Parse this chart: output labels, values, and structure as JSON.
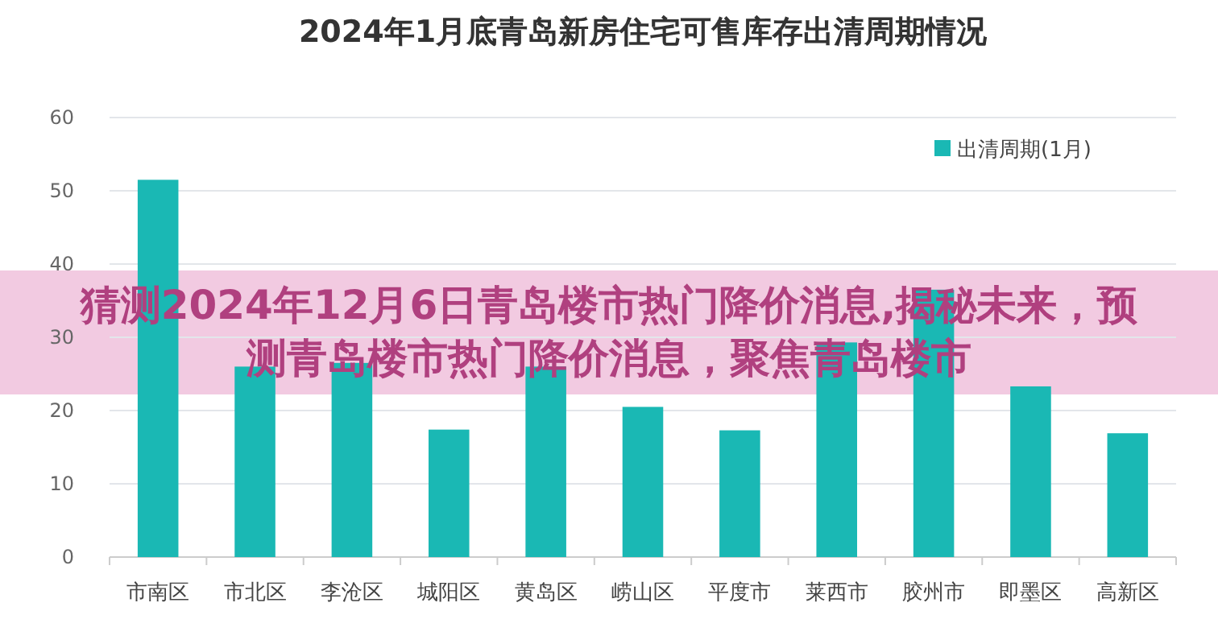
{
  "chart_data": {
    "type": "bar",
    "title": "2024年1月底青岛新房住宅可售库存出清周期情况",
    "categories": [
      "市南区",
      "市北区",
      "李沧区",
      "城阳区",
      "黄岛区",
      "崂山区",
      "平度市",
      "莱西市",
      "胶州市",
      "即墨区",
      "高新区"
    ],
    "series": [
      {
        "name": "出清周期(1月)",
        "color": "#1ab8b4",
        "values": [
          51.5,
          26,
          26.5,
          17.4,
          26,
          20.5,
          17.3,
          29.3,
          36.5,
          23.3,
          16.9
        ]
      }
    ],
    "ylim": [
      0,
      60
    ],
    "yticks": [
      0,
      10,
      20,
      30,
      40,
      50,
      60
    ],
    "grid": "y",
    "legend": "top right",
    "annotations": [
      "猜测2024年12月6日青岛楼市热门降价消息,揭秘未来，预测青岛楼市热门降价消息，聚焦青岛楼市"
    ]
  }
}
